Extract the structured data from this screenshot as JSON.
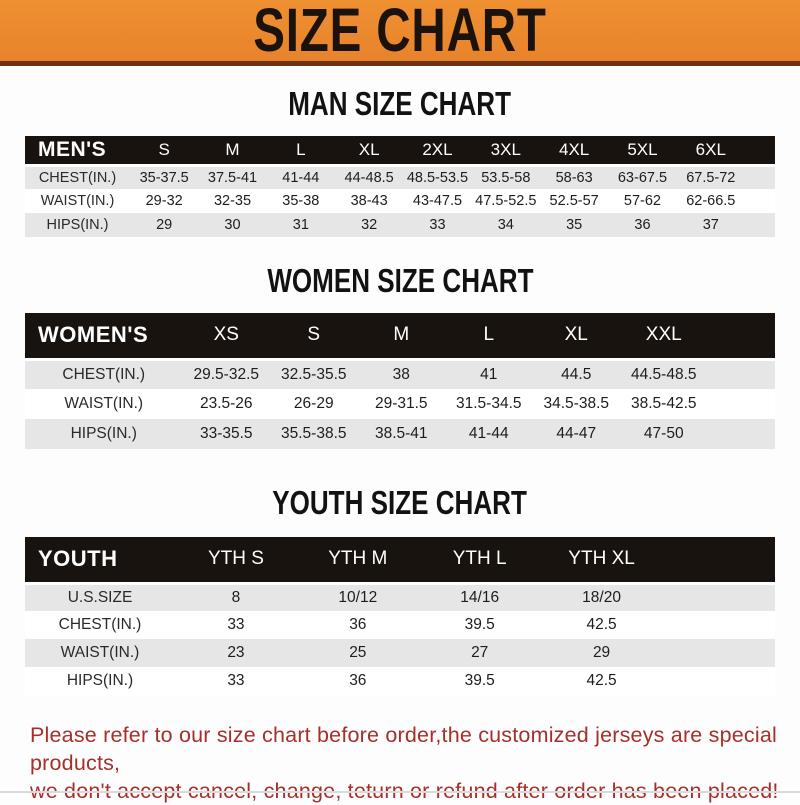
{
  "banner": {
    "title": "SIZE CHART"
  },
  "colors": {
    "banner_background": "#E8832C",
    "banner_background_light": "#EF9031",
    "banner_border": "#6E3312",
    "table_header_background": "#18130E",
    "row_stripe": "#E6E6E6",
    "footer_text_color": "#A5302B"
  },
  "sections": [
    {
      "heading": "MAN SIZE CHART",
      "corner_label": "MEN'S",
      "columns": [
        "S",
        "M",
        "L",
        "XL",
        "2XL",
        "3XL",
        "4XL",
        "5XL",
        "6XL"
      ],
      "rows": [
        {
          "label": "CHEST(IN.)",
          "values": [
            "35-37.5",
            "37.5-41",
            "41-44",
            "44-48.5",
            "48.5-53.5",
            "53.5-58",
            "58-63",
            "63-67.5",
            "67.5-72"
          ]
        },
        {
          "label": "WAIST(IN.)",
          "values": [
            "29-32",
            "32-35",
            "35-38",
            "38-43",
            "43-47.5",
            "47.5-52.5",
            "52.5-57",
            "57-62",
            "62-66.5"
          ]
        },
        {
          "label": "HIPS(IN.)",
          "values": [
            "29",
            "30",
            "31",
            "32",
            "33",
            "34",
            "35",
            "36",
            "37"
          ]
        }
      ]
    },
    {
      "heading": "WOMEN SIZE CHART",
      "corner_label": "WOMEN'S",
      "columns": [
        "XS",
        "S",
        "M",
        "L",
        "XL",
        "XXL"
      ],
      "rows": [
        {
          "label": "CHEST(IN.)",
          "values": [
            "29.5-32.5",
            "32.5-35.5",
            "38",
            "41",
            "44.5",
            "44.5-48.5"
          ]
        },
        {
          "label": "WAIST(IN.)",
          "values": [
            "23.5-26",
            "26-29",
            "29-31.5",
            "31.5-34.5",
            "34.5-38.5",
            "38.5-42.5"
          ]
        },
        {
          "label": "HIPS(IN.)",
          "values": [
            "33-35.5",
            "35.5-38.5",
            "38.5-41",
            "41-44",
            "44-47",
            "47-50"
          ]
        }
      ]
    },
    {
      "heading": "YOUTH SIZE CHART",
      "corner_label": "YOUTH",
      "columns": [
        "YTH S",
        "YTH M",
        "YTH L",
        "YTH XL"
      ],
      "rows": [
        {
          "label": "U.S.SIZE",
          "values": [
            "8",
            "10/12",
            "14/16",
            "18/20"
          ]
        },
        {
          "label": "CHEST(IN.)",
          "values": [
            "33",
            "36",
            "39.5",
            "42.5"
          ]
        },
        {
          "label": "WAIST(IN.)",
          "values": [
            "23",
            "25",
            "27",
            "29"
          ]
        },
        {
          "label": "HIPS(IN.)",
          "values": [
            "33",
            "36",
            "39.5",
            "42.5"
          ]
        }
      ]
    }
  ],
  "footer": {
    "line1": "Please refer to our size chart before order,the customized jerseys are special products,",
    "line2": "we don't accept cancel, change, teturn or refund after order has been placed!"
  }
}
